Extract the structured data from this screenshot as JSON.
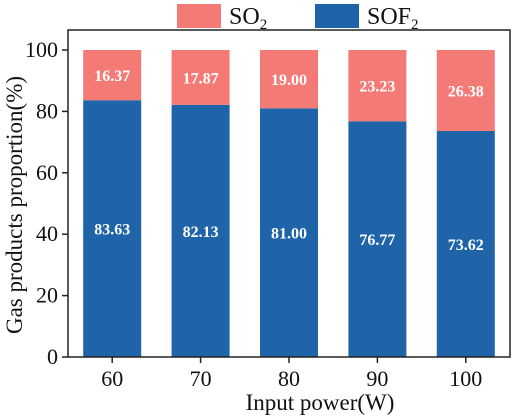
{
  "chart_data": {
    "type": "bar",
    "stacked": true,
    "categories": [
      "60",
      "70",
      "80",
      "90",
      "100"
    ],
    "series": [
      {
        "name": "SOF",
        "subscript": "2",
        "color": "#1f64a8",
        "values": [
          83.63,
          82.13,
          81.0,
          76.77,
          73.62
        ],
        "labels": [
          "83.63",
          "82.13",
          "81.00",
          "76.77",
          "73.62"
        ]
      },
      {
        "name": "SO",
        "subscript": "2",
        "color": "#f47a76",
        "values": [
          16.37,
          17.87,
          19.0,
          23.23,
          26.38
        ],
        "labels": [
          "16.37",
          "17.87",
          "19.00",
          "23.23",
          "26.38"
        ]
      }
    ],
    "legend_order": [
      1,
      0
    ],
    "legend_position": "top",
    "xlabel": "Input power(W)",
    "ylabel": "Gas products proportion(%)",
    "ylim": [
      0,
      100
    ],
    "yticks": [
      "0",
      "20",
      "40",
      "60",
      "80",
      "100"
    ],
    "grid": false
  }
}
